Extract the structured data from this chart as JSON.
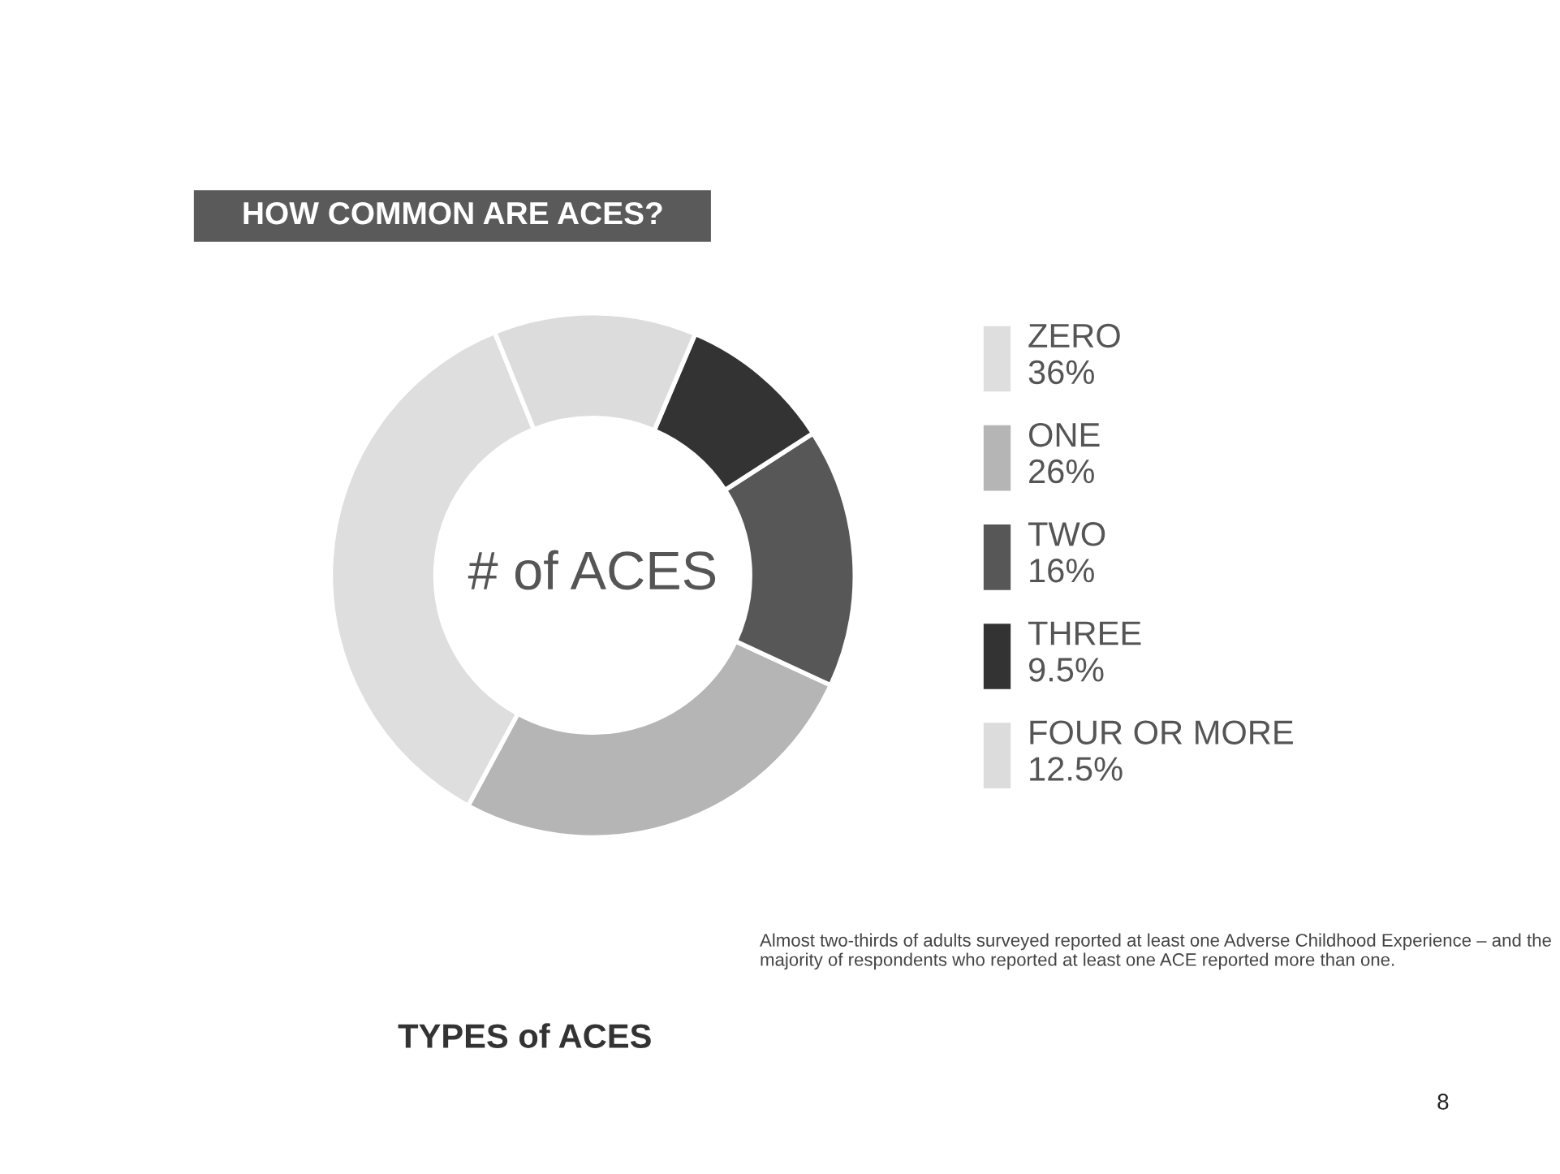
{
  "chart_data": {
    "type": "donut",
    "title": "HOW COMMON ARE ACES?",
    "categories": [
      "ZERO",
      "ONE",
      "TWO",
      "THREE",
      "FOUR OR MORE"
    ],
    "values": [
      36,
      26,
      16,
      9.5,
      12.5
    ],
    "value_labels": [
      "36%",
      "26%",
      "16%",
      "9.5%",
      "12.5%"
    ],
    "colors": [
      "#dedede",
      "#b5b5b5",
      "#575757",
      "#333333",
      "#dcdcdc"
    ],
    "legend": "right",
    "annotations": [
      "# of ACES",
      "Almost two-thirds of adults surveyed reported at least one Adverse Childhood Experience – and the majority of respondents who reported at least one ACE reported more than one.",
      "TYPES of ACES",
      "8"
    ]
  }
}
